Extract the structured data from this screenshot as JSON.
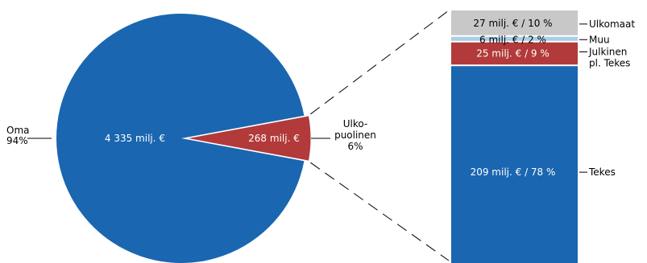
{
  "chart_data": [
    {
      "type": "pie",
      "unit": "milj. €",
      "slices": [
        {
          "key": "oma",
          "label_lines": [
            "Oma",
            "94%"
          ],
          "value": 4335,
          "value_text": "4 335 milj. €",
          "percent": 94
        },
        {
          "key": "ulkopuolinen",
          "label_lines": [
            "Ulko-",
            "puolinen",
            "6%"
          ],
          "value": 268,
          "value_text": "268 milj. €",
          "percent": 6
        }
      ]
    },
    {
      "type": "bar",
      "stacked": true,
      "unit": "milj. €",
      "segments": [
        {
          "key": "tekes",
          "label_lines": [
            "Tekes"
          ],
          "value": 209,
          "percent": 78,
          "value_text": "209 milj. € / 78 %"
        },
        {
          "key": "julkinen",
          "label_lines": [
            "Julkinen",
            "pl. Tekes"
          ],
          "value": 25,
          "percent": 9,
          "value_text": "25 milj. € / 9 %"
        },
        {
          "key": "muu",
          "label_lines": [
            "Muu"
          ],
          "value": 6,
          "percent": 2,
          "value_text": "6 milj. € / 2 %"
        },
        {
          "key": "ulkomaat",
          "label_lines": [
            "Ulkomaat"
          ],
          "value": 27,
          "percent": 10,
          "value_text": "27 milj. € / 10 %"
        }
      ]
    }
  ],
  "colors": {
    "oma": "#1a66b0",
    "ulkopuolinen": "#b23a3a",
    "tekes": "#1a66b0",
    "julkinen": "#b23a3a",
    "muu": "#a8cfe8",
    "ulkomaat": "#c8c8c8",
    "separator": "#ffffff",
    "connector": "#000000"
  }
}
